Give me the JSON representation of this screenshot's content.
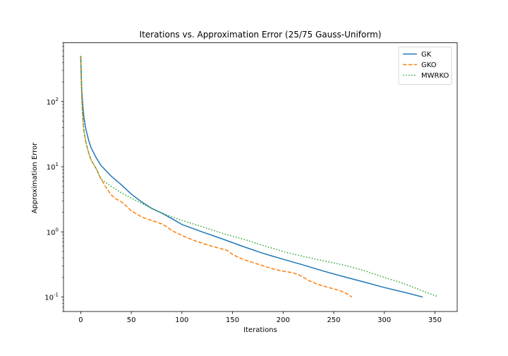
{
  "chart_data": {
    "type": "line",
    "title": "Iterations vs. Approximation Error (25/75 Gauss-Uniform)",
    "xlabel": "Iterations",
    "ylabel": "Approximation Error",
    "xlim": [
      -17,
      372
    ],
    "ylim": [
      0.06,
      800
    ],
    "yscale": "log",
    "x_ticks": [
      0,
      50,
      100,
      150,
      200,
      250,
      300,
      350
    ],
    "x_tick_labels": [
      "0",
      "50",
      "100",
      "150",
      "200",
      "250",
      "300",
      "350"
    ],
    "y_ticks": [
      0.1,
      1,
      10,
      100
    ],
    "y_tick_labels": [
      "10^-1",
      "10^0",
      "10^1",
      "10^2"
    ],
    "legend_position": "top-right",
    "grid": false,
    "series": [
      {
        "name": "GK",
        "color": "#1f77b4",
        "style": "solid",
        "x": [
          0,
          1,
          2,
          3,
          5,
          8,
          10,
          15,
          20,
          30,
          40,
          50,
          60,
          70,
          80,
          90,
          100,
          120,
          140,
          160,
          180,
          200,
          220,
          240,
          260,
          280,
          300,
          320,
          338
        ],
        "y": [
          500,
          150,
          90,
          60,
          38,
          25,
          20,
          14,
          10.5,
          7.2,
          5.3,
          3.8,
          2.9,
          2.3,
          1.95,
          1.6,
          1.3,
          1.0,
          0.78,
          0.6,
          0.47,
          0.38,
          0.31,
          0.25,
          0.205,
          0.17,
          0.14,
          0.118,
          0.1
        ]
      },
      {
        "name": "GKO",
        "color": "#ff7f0e",
        "style": "dashed",
        "x": [
          0,
          1,
          2,
          3,
          5,
          8,
          10,
          15,
          20,
          25,
          30,
          35,
          40,
          45,
          50,
          55,
          60,
          70,
          80,
          85,
          90,
          100,
          110,
          120,
          130,
          145,
          150,
          160,
          175,
          190,
          200,
          210,
          218,
          225,
          235,
          245,
          255,
          262,
          268
        ],
        "y": [
          500,
          120,
          60,
          37,
          24,
          16,
          13,
          9.5,
          6.5,
          4.8,
          3.7,
          3.2,
          2.9,
          2.5,
          2.1,
          1.9,
          1.7,
          1.5,
          1.33,
          1.2,
          1.05,
          0.88,
          0.76,
          0.67,
          0.6,
          0.52,
          0.45,
          0.38,
          0.32,
          0.27,
          0.25,
          0.235,
          0.21,
          0.18,
          0.155,
          0.14,
          0.127,
          0.115,
          0.1
        ]
      },
      {
        "name": "MWRKO",
        "color": "#2ca02c",
        "style": "dotted",
        "x": [
          0,
          1,
          2,
          3,
          5,
          8,
          10,
          15,
          20,
          30,
          40,
          50,
          60,
          70,
          80,
          90,
          100,
          120,
          140,
          160,
          180,
          200,
          220,
          240,
          260,
          280,
          300,
          320,
          340,
          352
        ],
        "y": [
          500,
          120,
          60,
          37,
          24,
          16,
          13,
          9.5,
          6.5,
          5.0,
          4.0,
          3.3,
          2.75,
          2.3,
          1.95,
          1.7,
          1.5,
          1.2,
          0.95,
          0.78,
          0.62,
          0.5,
          0.42,
          0.36,
          0.31,
          0.255,
          0.2,
          0.16,
          0.12,
          0.103
        ]
      }
    ]
  }
}
